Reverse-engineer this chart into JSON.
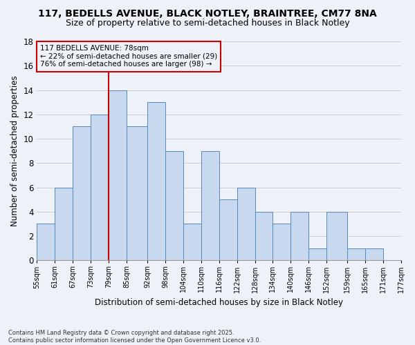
{
  "title_line1": "117, BEDELLS AVENUE, BLACK NOTLEY, BRAINTREE, CM77 8NA",
  "title_line2": "Size of property relative to semi-detached houses in Black Notley",
  "xlabel": "Distribution of semi-detached houses by size in Black Notley",
  "ylabel": "Number of semi-detached properties",
  "footer_line1": "Contains HM Land Registry data © Crown copyright and database right 2025.",
  "footer_line2": "Contains public sector information licensed under the Open Government Licence v3.0.",
  "annotation_title": "117 BEDELLS AVENUE: 78sqm",
  "annotation_line2": "← 22% of semi-detached houses are smaller (29)",
  "annotation_line3": "76% of semi-detached houses are larger (98) →",
  "bar_left_edges": [
    55,
    61,
    67,
    73,
    79,
    85,
    92,
    98,
    104,
    110,
    116,
    122,
    128,
    134,
    140,
    146,
    152,
    159,
    165,
    171
  ],
  "bar_widths": [
    6,
    6,
    6,
    6,
    6,
    7,
    6,
    6,
    6,
    6,
    6,
    6,
    6,
    6,
    6,
    6,
    7,
    6,
    6,
    6
  ],
  "bar_heights": [
    3,
    6,
    11,
    12,
    14,
    11,
    13,
    9,
    3,
    9,
    5,
    6,
    4,
    3,
    4,
    1,
    4,
    1,
    1,
    0
  ],
  "bar_color": "#c8d8ee",
  "bar_edge_color": "#5588bb",
  "vline_x": 79,
  "vline_color": "#cc0000",
  "ylim": [
    0,
    18
  ],
  "yticks": [
    0,
    2,
    4,
    6,
    8,
    10,
    12,
    14,
    16,
    18
  ],
  "xlim": [
    55,
    177
  ],
  "xtick_labels": [
    "55sqm",
    "61sqm",
    "67sqm",
    "73sqm",
    "79sqm",
    "85sqm",
    "92sqm",
    "98sqm",
    "104sqm",
    "110sqm",
    "116sqm",
    "122sqm",
    "128sqm",
    "134sqm",
    "140sqm",
    "146sqm",
    "152sqm",
    "159sqm",
    "165sqm",
    "171sqm",
    "177sqm"
  ],
  "xtick_positions": [
    55,
    61,
    67,
    73,
    79,
    85,
    92,
    98,
    104,
    110,
    116,
    122,
    128,
    134,
    140,
    146,
    152,
    159,
    165,
    171,
    177
  ],
  "grid_color": "#cccccc",
  "bg_color": "#eef2f8",
  "annotation_box_color": "#cc0000",
  "title_fontsize": 10,
  "subtitle_fontsize": 9,
  "ylabel_fontsize": 8.5,
  "xlabel_fontsize": 8.5,
  "ytick_fontsize": 8.5,
  "xtick_fontsize": 7,
  "footer_fontsize": 6,
  "ann_fontsize": 7.5
}
